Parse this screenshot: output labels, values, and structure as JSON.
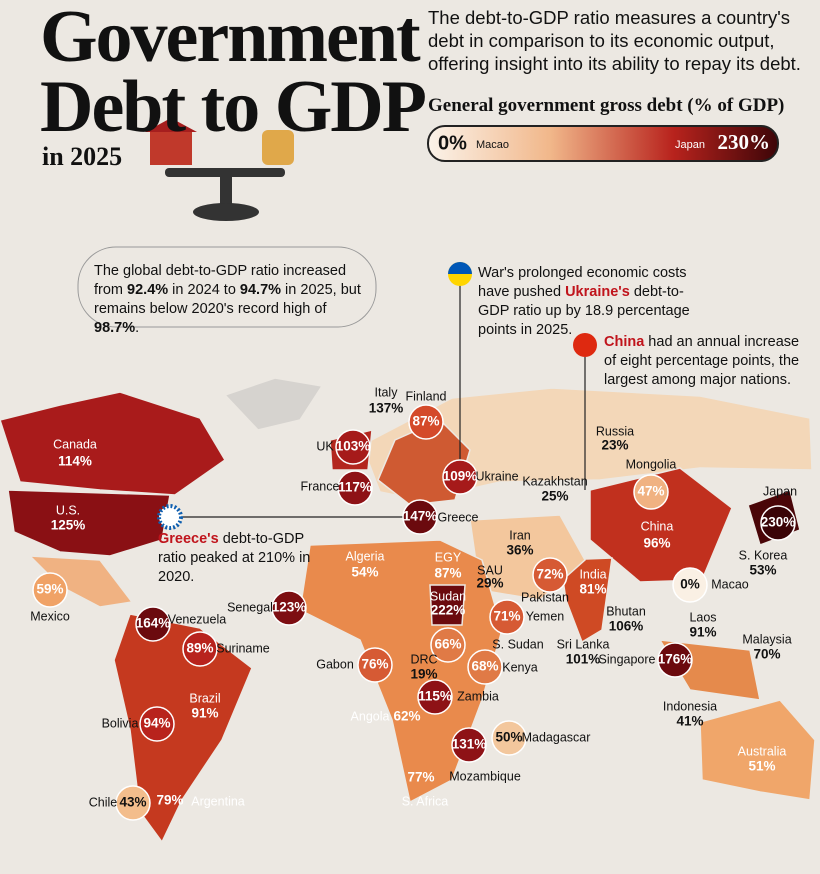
{
  "header": {
    "title_line1": "Government",
    "title_line2": "Debt to GDP",
    "year": "in 2025",
    "intro": "The debt-to-GDP ratio measures a country's debt in comparison to its economic output, offering insight into its ability to repay its debt."
  },
  "legend": {
    "title": "General government gross debt (% of GDP)",
    "min_value": "0%",
    "min_label": "Macao",
    "max_label": "Japan",
    "max_value": "230%"
  },
  "callouts": [
    {
      "parts": [
        {
          "text": "The global debt-to-GDP ratio increased from ",
          "style": "normal"
        },
        {
          "text": "92.4%",
          "style": "bold"
        },
        {
          "text": " in 2024 to ",
          "style": "normal"
        },
        {
          "text": "94.7%",
          "style": "bold"
        },
        {
          "text": " in 2025, but remains below 2020's record high of ",
          "style": "normal"
        },
        {
          "text": "98.7%",
          "style": "bold"
        },
        {
          "text": ".",
          "style": "normal"
        }
      ]
    },
    {
      "parts": [
        {
          "text": "War's prolonged economic costs have pushed ",
          "style": "normal"
        },
        {
          "text": "Ukraine's",
          "style": "red"
        },
        {
          "text": " debt-to-GDP ratio up by 18.9 percentage points in 2025.",
          "style": "normal"
        }
      ]
    },
    {
      "parts": [
        {
          "text": "China",
          "style": "red"
        },
        {
          "text": " had an annual increase of eight percentage points, the largest among major nations.",
          "style": "normal"
        }
      ]
    },
    {
      "parts": [
        {
          "text": "Greece's",
          "style": "red"
        },
        {
          "text": " debt-to-GDP ratio peaked at 210% in 2020.",
          "style": "normal"
        }
      ]
    }
  ],
  "countries": [
    {
      "name": "Canada",
      "debt": "114%"
    },
    {
      "name": "U.S.",
      "debt": "125%"
    },
    {
      "name": "Mexico",
      "debt": "59%"
    },
    {
      "name": "Venezuela",
      "debt": "164%"
    },
    {
      "name": "Suriname",
      "debt": "89%"
    },
    {
      "name": "Brazil",
      "debt": "91%"
    },
    {
      "name": "Bolivia",
      "debt": "94%"
    },
    {
      "name": "Chile",
      "debt": "43%"
    },
    {
      "name": "Argentina",
      "debt": "79%"
    },
    {
      "name": "UK",
      "debt": "103%"
    },
    {
      "name": "Italy",
      "debt": "137%"
    },
    {
      "name": "Finland",
      "debt": "87%"
    },
    {
      "name": "France",
      "debt": "117%"
    },
    {
      "name": "Ukraine",
      "debt": "109%"
    },
    {
      "name": "Greece",
      "debt": "147%"
    },
    {
      "name": "Algeria",
      "debt": "54%"
    },
    {
      "name": "Senegal",
      "debt": "123%"
    },
    {
      "name": "EGY",
      "debt": "87%"
    },
    {
      "name": "Sudan",
      "debt": "222%"
    },
    {
      "name": "SAU",
      "debt": "29%"
    },
    {
      "name": "Iran",
      "debt": "36%"
    },
    {
      "name": "Kazakhstan",
      "debt": "25%"
    },
    {
      "name": "Russia",
      "debt": "23%"
    },
    {
      "name": "Mongolia",
      "debt": "47%"
    },
    {
      "name": "China",
      "debt": "96%"
    },
    {
      "name": "Japan",
      "debt": "230%"
    },
    {
      "name": "S. Korea",
      "debt": "53%"
    },
    {
      "name": "Macao",
      "debt": "0%"
    },
    {
      "name": "Pakistan",
      "debt": "72%"
    },
    {
      "name": "India",
      "debt": "81%"
    },
    {
      "name": "Yemen",
      "debt": "71%"
    },
    {
      "name": "S. Sudan",
      "debt": "66%"
    },
    {
      "name": "Bhutan",
      "debt": "106%"
    },
    {
      "name": "Laos",
      "debt": "91%"
    },
    {
      "name": "Malaysia",
      "debt": "70%"
    },
    {
      "name": "Sri Lanka",
      "debt": "101%"
    },
    {
      "name": "Singapore",
      "debt": "176%"
    },
    {
      "name": "Gabon",
      "debt": "76%"
    },
    {
      "name": "DRC",
      "debt": "19%"
    },
    {
      "name": "Kenya",
      "debt": "68%"
    },
    {
      "name": "Zambia",
      "debt": "115%"
    },
    {
      "name": "Angola",
      "debt": "62%"
    },
    {
      "name": "Mozambique",
      "debt": "131%"
    },
    {
      "name": "Madagascar",
      "debt": "50%"
    },
    {
      "name": "S. Africa",
      "debt": "77%"
    },
    {
      "name": "Indonesia",
      "debt": "41%"
    },
    {
      "name": "Australia",
      "debt": "51%"
    }
  ]
}
